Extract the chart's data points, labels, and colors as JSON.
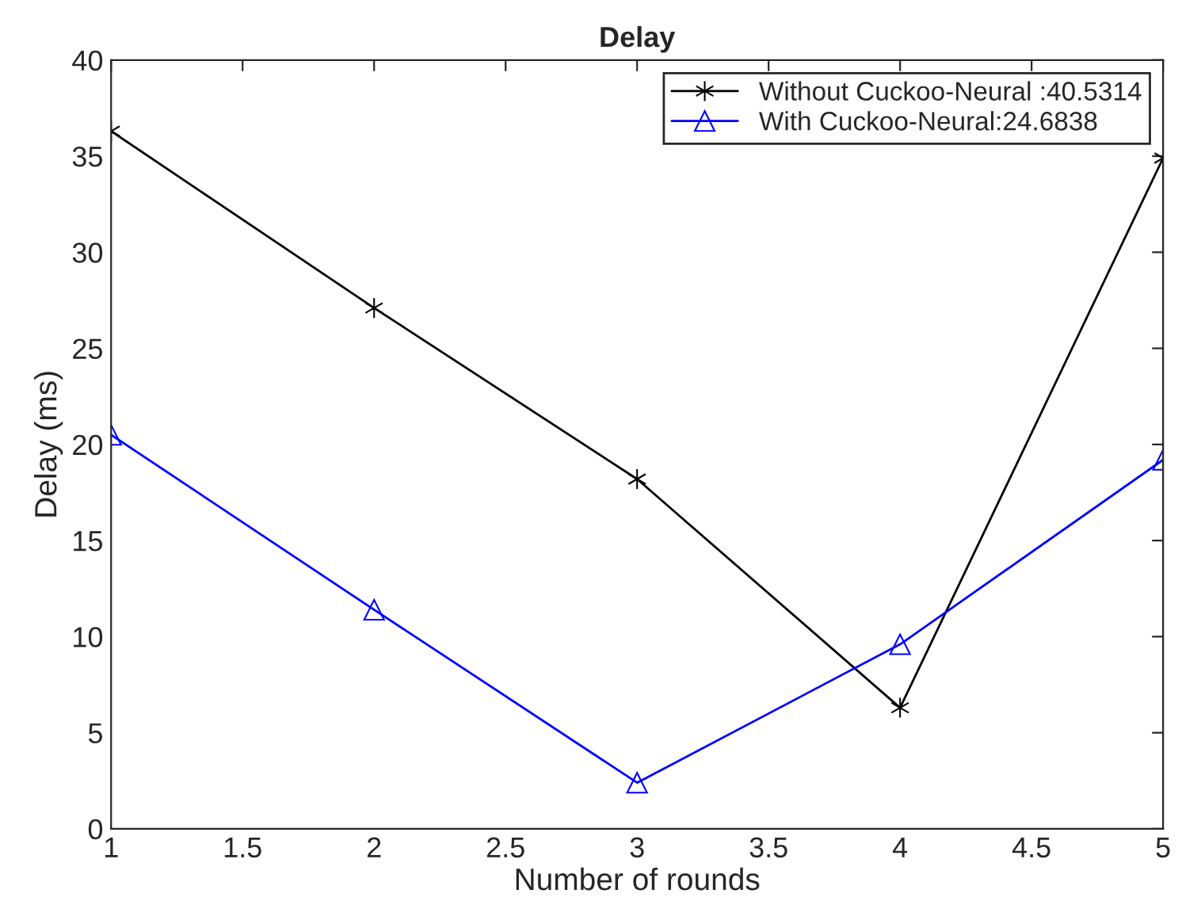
{
  "chart_data": {
    "type": "line",
    "title": "Delay",
    "xlabel": "Number of rounds",
    "ylabel": "Delay (ms)",
    "x": [
      1,
      2,
      3,
      4,
      5
    ],
    "series": [
      {
        "name": "Without Cuckoo-Neural :40.5314",
        "color": "#000000",
        "marker": "cross",
        "values": [
          36.3,
          27.1,
          18.2,
          6.3,
          34.9
        ]
      },
      {
        "name": "With Cuckoo-Neural:24.6838",
        "color": "#0000ff",
        "marker": "triangle",
        "values": [
          20.5,
          11.4,
          2.4,
          9.6,
          19.2
        ]
      }
    ],
    "xlim": [
      1,
      5
    ],
    "xticks": [
      1,
      1.5,
      2,
      2.5,
      3,
      3.5,
      4,
      4.5,
      5
    ],
    "ylim": [
      0,
      40
    ],
    "yticks": [
      0,
      5,
      10,
      15,
      20,
      25,
      30,
      35,
      40
    ],
    "grid": false,
    "legend": "top right",
    "line_style": "solid"
  }
}
